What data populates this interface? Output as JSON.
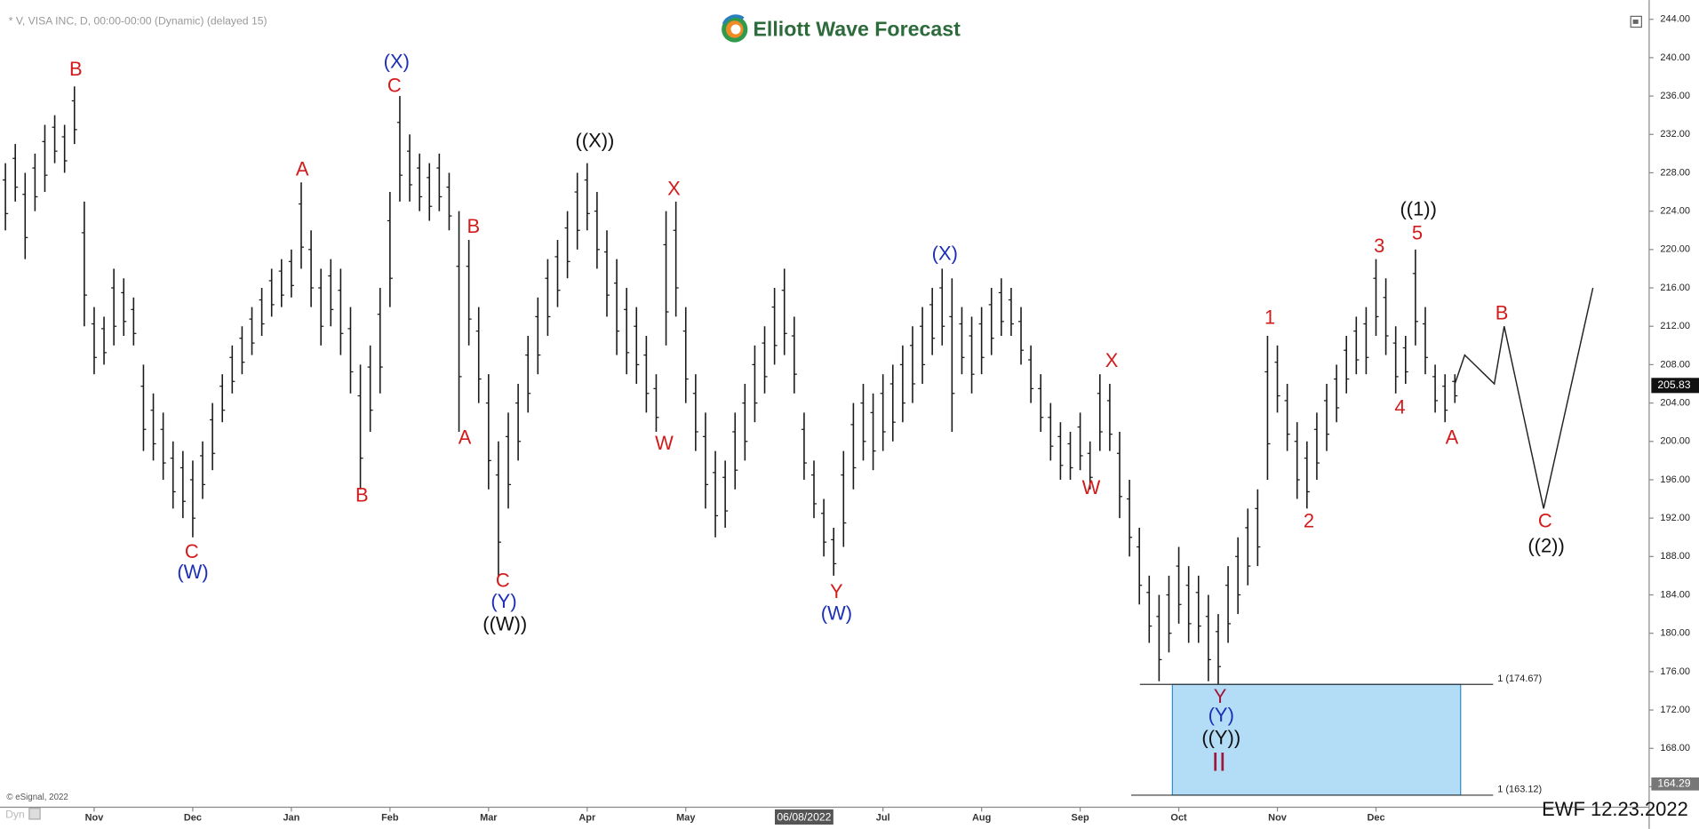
{
  "chart_data": {
    "type": "ohlc",
    "header": "* V, VISA INC, D, 00:00-00:00 (Dynamic) (delayed 15)",
    "logo_text": "Elliott Wave Forecast",
    "copyright": "© eSignal, 2022",
    "footer_left": "Dyn",
    "stamp": "EWF 12.23.2022",
    "crosshair_date": "06/08/2022",
    "bar_color": "#1a1a1a",
    "grid": false,
    "categories": [
      null,
      null,
      null,
      null,
      null,
      null,
      null,
      null,
      null,
      "Nov",
      null,
      null,
      null,
      null,
      null,
      null,
      null,
      null,
      null,
      "Dec",
      null,
      null,
      null,
      null,
      null,
      null,
      null,
      null,
      null,
      "Jan",
      null,
      null,
      null,
      null,
      null,
      null,
      null,
      null,
      null,
      "Feb",
      null,
      null,
      null,
      null,
      null,
      null,
      null,
      null,
      null,
      "Mar",
      null,
      null,
      null,
      null,
      null,
      null,
      null,
      null,
      null,
      "Apr",
      null,
      null,
      null,
      null,
      null,
      null,
      null,
      null,
      null,
      "May",
      null,
      null,
      null,
      null,
      null,
      null,
      null,
      null,
      null,
      null,
      null,
      null,
      null,
      null,
      null,
      null,
      null,
      null,
      null,
      "Jul",
      null,
      null,
      null,
      null,
      null,
      null,
      null,
      null,
      null,
      "Aug",
      null,
      null,
      null,
      null,
      null,
      null,
      null,
      null,
      null,
      "Sep",
      null,
      null,
      null,
      null,
      null,
      null,
      null,
      null,
      null,
      "Oct",
      null,
      null,
      null,
      null,
      null,
      null,
      null,
      null,
      null,
      "Nov",
      null,
      null,
      null,
      null,
      null,
      null,
      null,
      null,
      null,
      "Dec",
      null,
      null,
      null,
      null,
      null,
      null,
      null,
      null,
      null,
      null,
      null,
      null,
      null,
      null,
      null,
      null,
      null,
      null,
      null,
      null,
      null
    ],
    "highs": [
      229,
      231,
      228,
      230,
      233,
      234,
      233,
      237,
      225,
      214,
      213,
      218,
      217,
      215,
      208,
      205,
      203,
      200,
      199,
      198,
      200,
      204,
      207,
      210,
      212,
      214,
      216,
      218,
      219,
      220,
      227,
      222,
      218,
      219,
      218,
      214,
      208,
      210,
      216,
      226,
      236,
      232,
      230,
      229,
      230,
      228,
      224,
      221,
      214,
      207,
      200,
      203,
      206,
      211,
      215,
      219,
      221,
      224,
      228,
      229,
      226,
      222,
      219,
      216,
      214,
      211,
      207,
      224,
      225,
      214,
      207,
      203,
      199,
      198,
      203,
      206,
      210,
      212,
      216,
      218,
      213,
      203,
      198,
      194,
      191,
      199,
      204,
      206,
      205,
      207,
      208,
      210,
      212,
      214,
      216,
      218,
      217,
      214,
      213,
      214,
      216,
      217,
      216,
      214,
      210,
      207,
      204,
      202,
      201,
      203,
      200,
      207,
      206,
      201,
      196,
      191,
      186,
      184,
      186,
      189,
      187,
      186,
      184,
      182,
      187,
      190,
      193,
      195,
      211,
      210,
      206,
      202,
      200,
      203,
      206,
      208,
      211,
      213,
      214,
      219,
      217,
      212,
      211,
      220,
      214,
      208,
      207,
      207,
      null,
      null,
      null,
      null,
      null,
      null,
      null,
      null,
      null,
      null,
      null,
      null,
      null,
      null
    ],
    "lows": [
      222,
      225,
      219,
      224,
      226,
      229,
      228,
      231,
      212,
      207,
      208,
      210,
      211,
      210,
      199,
      198,
      196,
      193,
      192,
      190,
      194,
      197,
      202,
      205,
      207,
      209,
      211,
      213,
      214,
      215,
      218,
      214,
      210,
      212,
      209,
      205,
      195,
      201,
      205,
      214,
      225,
      225,
      224,
      223,
      224,
      222,
      201,
      210,
      204,
      195,
      186,
      193,
      198,
      203,
      207,
      211,
      214,
      217,
      220,
      222,
      218,
      213,
      209,
      207,
      206,
      203,
      201,
      210,
      213,
      204,
      199,
      193,
      190,
      191,
      195,
      198,
      202,
      205,
      208,
      209,
      205,
      196,
      192,
      188,
      186,
      189,
      195,
      198,
      197,
      199,
      200,
      202,
      204,
      206,
      209,
      210,
      201,
      207,
      205,
      207,
      209,
      211,
      211,
      208,
      204,
      201,
      198,
      196,
      196,
      197,
      195,
      199,
      199,
      192,
      188,
      183,
      179,
      175,
      178,
      181,
      179,
      179,
      175,
      174.7,
      179,
      182,
      185,
      187,
      196,
      203,
      199,
      194,
      193,
      196,
      199,
      202,
      205,
      207,
      207,
      211,
      209,
      205,
      206,
      210,
      207,
      203,
      202,
      204,
      null,
      null,
      null,
      null,
      null,
      null,
      null,
      null,
      null,
      null,
      null,
      null,
      null,
      null
    ],
    "projection": [
      null,
      null,
      null,
      null,
      null,
      null,
      null,
      null,
      null,
      null,
      null,
      null,
      null,
      null,
      null,
      null,
      null,
      null,
      null,
      null,
      null,
      null,
      null,
      null,
      null,
      null,
      null,
      null,
      null,
      null,
      null,
      null,
      null,
      null,
      null,
      null,
      null,
      null,
      null,
      null,
      null,
      null,
      null,
      null,
      null,
      null,
      null,
      null,
      null,
      null,
      null,
      null,
      null,
      null,
      null,
      null,
      null,
      null,
      null,
      null,
      null,
      null,
      null,
      null,
      null,
      null,
      null,
      null,
      null,
      null,
      null,
      null,
      null,
      null,
      null,
      null,
      null,
      null,
      null,
      null,
      null,
      null,
      null,
      null,
      null,
      null,
      null,
      null,
      null,
      null,
      null,
      null,
      null,
      null,
      null,
      null,
      null,
      null,
      null,
      null,
      null,
      null,
      null,
      null,
      null,
      null,
      null,
      null,
      null,
      null,
      null,
      null,
      null,
      null,
      null,
      null,
      null,
      null,
      null,
      null,
      null,
      null,
      null,
      null,
      null,
      null,
      null,
      null,
      null,
      null,
      null,
      null,
      null,
      null,
      null,
      null,
      null,
      null,
      null,
      null,
      null,
      null,
      null,
      null,
      null,
      null,
      null,
      206,
      209,
      208,
      207,
      206,
      212,
      207.25,
      202.5,
      197.75,
      193,
      197.6,
      202.2,
      206.8,
      211.4,
      216
    ],
    "projection_color": "#222222",
    "ylim": [
      162.2,
      245.1
    ],
    "yticks": [
      {
        "value": 164,
        "label": "164.00"
      },
      {
        "value": 168,
        "label": "168.00"
      },
      {
        "value": 172,
        "label": "172.00"
      },
      {
        "value": 176,
        "label": "176.00"
      },
      {
        "value": 180,
        "label": "180.00"
      },
      {
        "value": 184,
        "label": "184.00"
      },
      {
        "value": 188,
        "label": "188.00"
      },
      {
        "value": 192,
        "label": "192.00"
      },
      {
        "value": 196,
        "label": "196.00"
      },
      {
        "value": 200,
        "label": "200.00"
      },
      {
        "value": 204,
        "label": "204.00"
      },
      {
        "value": 208,
        "label": "208.00"
      },
      {
        "value": 212,
        "label": "212.00"
      },
      {
        "value": 216,
        "label": "216.00"
      },
      {
        "value": 220,
        "label": "220.00"
      },
      {
        "value": 224,
        "label": "224.00"
      },
      {
        "value": 228,
        "label": "228.00"
      },
      {
        "value": 232,
        "label": "232.00"
      },
      {
        "value": 236,
        "label": "236.00"
      },
      {
        "value": 240,
        "label": "240.00"
      },
      {
        "value": 244,
        "label": "244.00"
      }
    ],
    "last_price": {
      "value": 205.83,
      "label": "205.83"
    },
    "scale_low": {
      "value": 164.29,
      "label": "164.29"
    },
    "zone": {
      "fill": "#b3dcf7",
      "stroke": "#2a8fd0",
      "levels": [
        {
          "value": 174.67,
          "label": "1 (174.67)"
        },
        {
          "value": 163.12,
          "label": "1 (163.12)"
        }
      ]
    },
    "annotations": [
      {
        "text": "B",
        "color": "#d21c1c"
      },
      {
        "text": "(X)",
        "color": "#1c2fb5"
      },
      {
        "text": "C",
        "color": "#d21c1c"
      },
      {
        "text": "A",
        "color": "#d21c1c"
      },
      {
        "text": "((X))",
        "color": "#111111"
      },
      {
        "text": "X",
        "color": "#d21c1c"
      },
      {
        "text": "B",
        "color": "#d21c1c"
      },
      {
        "text": "A",
        "color": "#d21c1c"
      },
      {
        "text": "B",
        "color": "#d21c1c"
      },
      {
        "text": "W",
        "color": "#d21c1c"
      },
      {
        "text": "C",
        "color": "#d21c1c"
      },
      {
        "text": "(W)",
        "color": "#1c2fb5"
      },
      {
        "text": "C",
        "color": "#d21c1c"
      },
      {
        "text": "(Y)",
        "color": "#1c2fb5"
      },
      {
        "text": "((W))",
        "color": "#111111"
      },
      {
        "text": "Y",
        "color": "#d21c1c"
      },
      {
        "text": "(W)",
        "color": "#1c2fb5"
      },
      {
        "text": "(X)",
        "color": "#1c2fb5"
      },
      {
        "text": "X",
        "color": "#d21c1c"
      },
      {
        "text": "W",
        "color": "#d21c1c"
      },
      {
        "text": "1",
        "color": "#d21c1c"
      },
      {
        "text": "2",
        "color": "#d21c1c"
      },
      {
        "text": "3",
        "color": "#d21c1c"
      },
      {
        "text": "((1))",
        "color": "#111111"
      },
      {
        "text": "5",
        "color": "#d21c1c"
      },
      {
        "text": "4",
        "color": "#d21c1c"
      },
      {
        "text": "A",
        "color": "#d21c1c"
      },
      {
        "text": "B",
        "color": "#d21c1c"
      },
      {
        "text": "C",
        "color": "#d21c1c"
      },
      {
        "text": "((2))",
        "color": "#111111"
      },
      {
        "text": "Y",
        "color": "#a0173a"
      },
      {
        "text": "(Y)",
        "color": "#1c2fb5"
      },
      {
        "text": "((Y))",
        "color": "#111111"
      },
      {
        "text": "II",
        "color": "#a0173a"
      }
    ]
  }
}
